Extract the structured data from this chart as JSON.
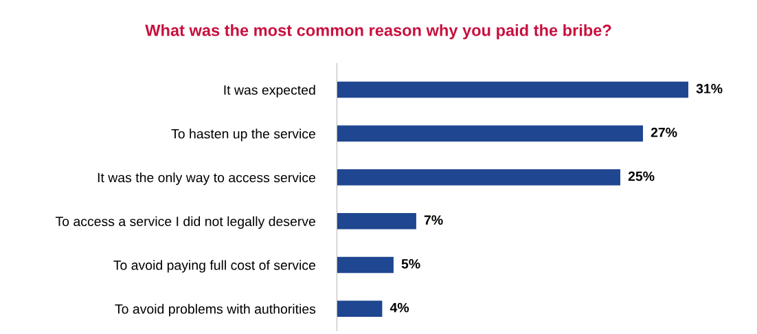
{
  "chart_data": {
    "type": "bar",
    "orientation": "horizontal",
    "title": "What was the most common reason why you paid the bribe?",
    "categories": [
      "It was expected",
      "To hasten up the service",
      "It was the only way to access service",
      "To access a service I did not legally deserve",
      "To avoid paying full cost of service",
      "To avoid problems with authorities"
    ],
    "values": [
      31,
      27,
      25,
      7,
      5,
      4
    ],
    "value_labels": [
      "31%",
      "27%",
      "25%",
      "7%",
      "5%",
      "4%"
    ],
    "color": "#1f4690",
    "grid": false,
    "legend": false
  }
}
